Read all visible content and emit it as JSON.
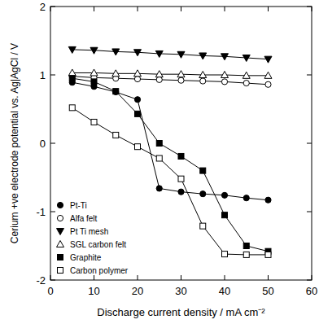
{
  "chart_data": {
    "type": "line",
    "x_label": "Discharge current density / mA cm⁻²",
    "y_label": "Cerium +ve electrode potential  vs. Ag|AgCl / V",
    "x": [
      5,
      10,
      15,
      20,
      25,
      30,
      35,
      40,
      45,
      50
    ],
    "xlim": [
      0,
      60
    ],
    "xticks": [
      0,
      10,
      20,
      30,
      40,
      50,
      60
    ],
    "ylim": [
      -2,
      2
    ],
    "yticks": [
      -2,
      -1,
      0,
      1,
      2
    ],
    "legend": "lower left",
    "grid": false,
    "series": [
      {
        "name": "Pt-Ti",
        "color": "#000000",
        "marker": "circle",
        "line_style": "solid",
        "values": [
          0.89,
          0.83,
          0.75,
          0.64,
          -0.66,
          -0.71,
          -0.74,
          -0.76,
          -0.8,
          -0.83
        ]
      },
      {
        "name": "Alfa felt",
        "color": "#000000",
        "marker": "circle-open",
        "line_style": "solid",
        "values": [
          0.98,
          0.96,
          0.95,
          0.94,
          0.93,
          0.92,
          0.91,
          0.9,
          0.88,
          0.86
        ]
      },
      {
        "name": "Pt Ti mesh",
        "color": "#000000",
        "marker": "triangle-down",
        "line_style": "solid",
        "values": [
          1.37,
          1.36,
          1.34,
          1.33,
          1.31,
          1.3,
          1.28,
          1.27,
          1.25,
          1.23
        ]
      },
      {
        "name": "SGL carbon felt",
        "color": "#000000",
        "marker": "triangle-open",
        "line_style": "solid",
        "values": [
          1.03,
          1.03,
          1.02,
          1.02,
          1.01,
          1.01,
          1.0,
          1.0,
          0.99,
          0.99
        ]
      },
      {
        "name": "Graphite",
        "color": "#000000",
        "marker": "square",
        "line_style": "solid",
        "values": [
          0.95,
          0.9,
          0.76,
          0.43,
          0.0,
          -0.19,
          -0.4,
          -1.05,
          -1.5,
          -1.58
        ]
      },
      {
        "name": "Carbon polymer",
        "color": "#000000",
        "marker": "square-open",
        "line_style": "solid",
        "values": [
          0.52,
          0.31,
          0.12,
          -0.05,
          -0.22,
          -0.52,
          -1.21,
          -1.62,
          -1.63,
          -1.63
        ]
      }
    ]
  }
}
